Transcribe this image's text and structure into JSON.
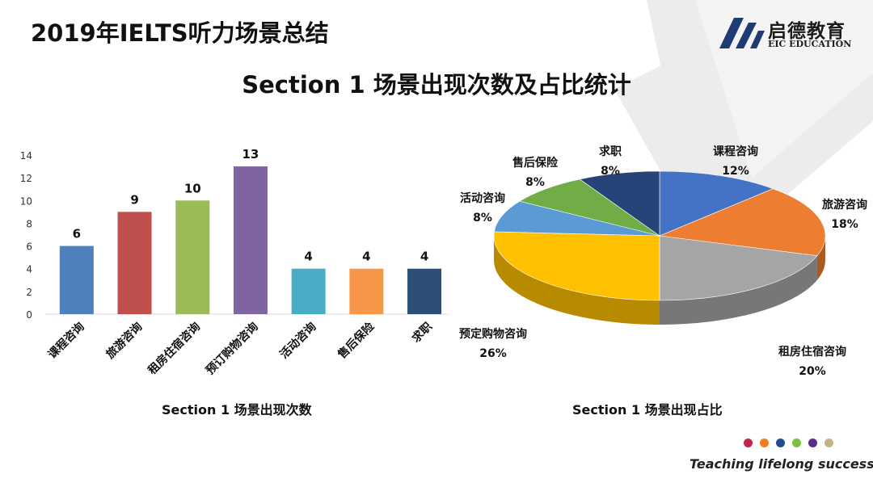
{
  "slide": {
    "title": "2019年IELTS听力场景总结",
    "headline": "Section 1 场景出现次数及占比统计",
    "logo_cn": "启德教育",
    "logo_en": "EIC EDUCATION",
    "tagline": "Teaching lifelong success",
    "dot_colors": [
      "#c0244a",
      "#ef7d22",
      "#1f4e8c",
      "#7ac143",
      "#5a2d8c",
      "#c2b48a"
    ]
  },
  "chart_data": [
    {
      "type": "bar",
      "title": "",
      "xlabel": "Section 1 场景出现次数",
      "ylabel": "",
      "categories": [
        "课程咨询",
        "旅游咨询",
        "租房住宿咨询",
        "预订购物咨询",
        "活动咨询",
        "售后保险",
        "求职"
      ],
      "values": [
        6,
        9,
        10,
        13,
        4,
        4,
        4
      ],
      "colors": [
        "#4f81bd",
        "#c0504d",
        "#9bbb59",
        "#8064a2",
        "#4bacc6",
        "#f79646",
        "#2c4d75"
      ],
      "ylim": [
        0,
        14
      ],
      "yticks": [
        0,
        2,
        4,
        6,
        8,
        10,
        12,
        14
      ],
      "grid": false,
      "data_labels": true
    },
    {
      "type": "pie",
      "title": "",
      "xlabel": "Section 1 场景出现占比",
      "categories": [
        "课程咨询",
        "旅游咨询",
        "租房住宿咨询",
        "预定购物咨询",
        "活动咨询",
        "售后保险",
        "求职"
      ],
      "values": [
        12,
        18,
        20,
        26,
        8,
        8,
        8
      ],
      "labels": [
        "12%",
        "18%",
        "20%",
        "26%",
        "8%",
        "8%",
        "8%"
      ],
      "colors": [
        "#4472c4",
        "#ed7d31",
        "#a5a5a5",
        "#ffc000",
        "#5b9bd5",
        "#70ad47",
        "#264478"
      ],
      "style": "3d"
    }
  ]
}
